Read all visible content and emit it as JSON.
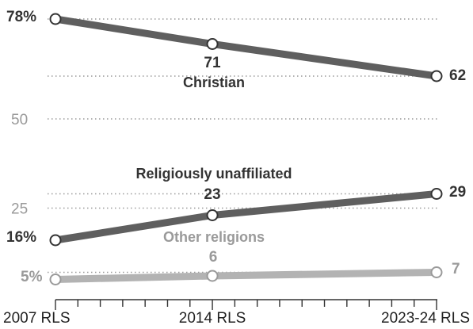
{
  "chart_data": {
    "type": "line",
    "categories": [
      "2007 RLS",
      "2014 RLS",
      "2023-24 RLS"
    ],
    "x": [
      2007,
      2014,
      2024
    ],
    "ylim": [
      0,
      80
    ],
    "y_ticks": [
      {
        "value": 50,
        "label": "50"
      },
      {
        "value": 25,
        "label": "25"
      }
    ],
    "grid": true,
    "series": [
      {
        "name": "Christian",
        "color": "#5f5f5f",
        "values": [
          78,
          71,
          62
        ],
        "labels": [
          "78%",
          "71",
          "62"
        ]
      },
      {
        "name": "Religiously unaffiliated",
        "color": "#5f5f5f",
        "values": [
          16,
          23,
          29
        ],
        "labels": [
          "16%",
          "23",
          "29"
        ]
      },
      {
        "name": "Other religions",
        "color": "#b3b3b3",
        "values": [
          5,
          6,
          7
        ],
        "labels": [
          "5%",
          "6",
          "7"
        ]
      }
    ]
  }
}
